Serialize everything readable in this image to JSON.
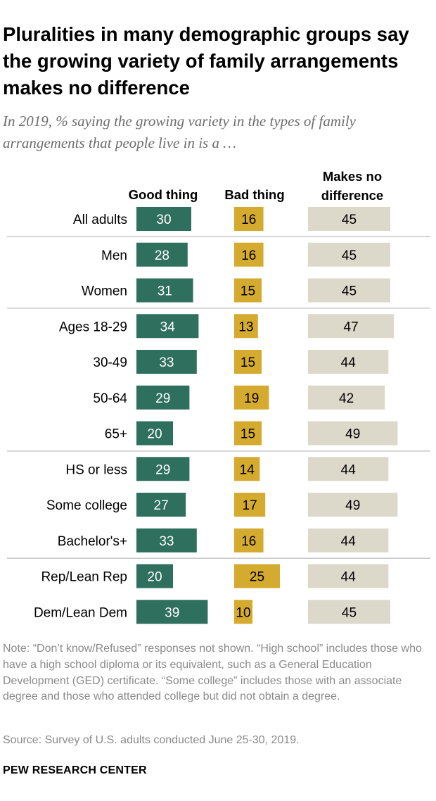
{
  "title": "Pluralities in many demographic groups say the growing variety of family arrangements makes no difference",
  "subtitle": "In 2019, % saying the growing variety in the types of family arrangements that people live in is a …",
  "note": "Note: “Don’t know/Refused” responses not shown. “High school” includes those who have a high school diploma or its equivalent, such as a General Education Development (GED) certificate. “Some college” includes those with an associate degree and those who attended college but did not obtain a degree.",
  "source": "Source: Survey of U.S. adults conducted June 25-30, 2019.",
  "brand": "PEW RESEARCH CENTER",
  "colors": {
    "good": "#2f6f5e",
    "bad": "#d4aa2f",
    "nodiff": "#dcd9cb",
    "divider": "#a9a9a9"
  },
  "chart_data": {
    "type": "bar",
    "orientation": "horizontal",
    "series": [
      {
        "name": "Good thing",
        "values": [
          30,
          28,
          31,
          34,
          33,
          29,
          20,
          29,
          27,
          33,
          20,
          39
        ]
      },
      {
        "name": "Bad thing",
        "values": [
          16,
          16,
          15,
          13,
          15,
          19,
          15,
          14,
          17,
          16,
          25,
          10
        ]
      },
      {
        "name": "Makes no difference",
        "values": [
          45,
          45,
          45,
          47,
          44,
          42,
          49,
          44,
          49,
          44,
          44,
          45
        ]
      }
    ],
    "categories": [
      "All adults",
      "Men",
      "Women",
      "Ages 18-29",
      "30-49",
      "50-64",
      "65+",
      "HS or less",
      "Some college",
      "Bachelor's+",
      "Rep/Lean Rep",
      "Dem/Lean Dem"
    ],
    "groups_end_after": [
      "All adults",
      "Women",
      "65+",
      "Bachelor's+"
    ],
    "header_lines": [
      [
        "Good thing"
      ],
      [
        "Bad thing"
      ],
      [
        "Makes no",
        "difference"
      ]
    ]
  }
}
